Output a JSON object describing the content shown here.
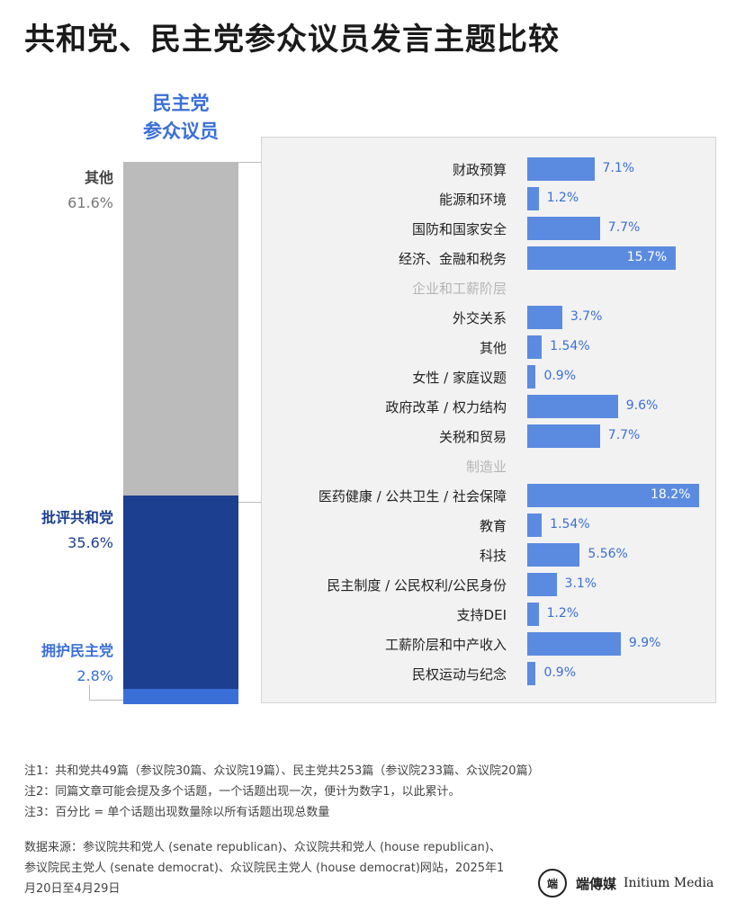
{
  "title": "共和党、民主党参众议员发言主题比较",
  "stack_title_lines": [
    "民主党",
    "参众议员"
  ],
  "chart_data": [
    {
      "type": "bar",
      "orientation": "stacked-vertical",
      "title": "民主党参众议员",
      "categories": [
        "其他",
        "批评共和党",
        "拥护民主党"
      ],
      "values": [
        61.6,
        35.6,
        2.8
      ],
      "value_labels": [
        "61.6%",
        "35.6%",
        "2.8%"
      ],
      "colors": [
        "#bbbbbb",
        "#1c3f8f",
        "#3a6fd8"
      ],
      "label_colors": [
        "#555555",
        "#1c3f8f",
        "#3a6fd8"
      ],
      "unit": "%"
    },
    {
      "type": "bar",
      "orientation": "horizontal",
      "categories": [
        "财政预算",
        "能源和环境",
        "国防和国家安全",
        "经济、金融和税务",
        "企业和工薪阶层",
        "外交关系",
        "其他",
        "女性 / 家庭议题",
        "政府改革 / 权力结构",
        "关税和贸易",
        "制造业",
        "医药健康 / 公共卫生 / 社会保障",
        "教育",
        "科技",
        "民主制度 / 公民权利/公民身份",
        "支持DEI",
        "工薪阶层和中产收入",
        "民权运动与纪念"
      ],
      "values": [
        7.1,
        1.2,
        7.7,
        15.7,
        null,
        3.7,
        1.54,
        0.9,
        9.6,
        7.7,
        null,
        18.2,
        1.54,
        5.56,
        3.1,
        1.2,
        9.9,
        0.9
      ],
      "value_labels": [
        "7.1%",
        "1.2%",
        "7.7%",
        "15.7%",
        "",
        "3.7%",
        "1.54%",
        "0.9%",
        "9.6%",
        "7.7%",
        "",
        "18.2%",
        "1.54%",
        "5.56%",
        "3.1%",
        "1.2%",
        "9.9%",
        "0.9%"
      ],
      "muted_categories": [
        "企业和工薪阶层",
        "制造业"
      ],
      "bar_color": "#5b8be0",
      "label_color": "#3a6fd8",
      "xlim": [
        0,
        20
      ],
      "unit": "%"
    }
  ],
  "notes": [
    "注1：共和党共49篇（参议院30篇、众议院19篇）、民主党共253篇（参议院233篇、众议院20篇）",
    "注2：同篇文章可能会提及多个话题，一个话题出现一次，便计为数字1，以此累计。",
    "注3：百分比 = 单个话题出现数量除以所有话题出现总数量"
  ],
  "source": "数据来源：参议院共和党人 (senate republican)、众议院共和党人 (house republican)、参议院民主党人 (senate democrat)、众议院民主党人 (house democrat)网站，2025年1月20日至4月29日",
  "logo": {
    "mark": "端",
    "name_cn": "端傳媒",
    "name_en": "Initium Media"
  }
}
